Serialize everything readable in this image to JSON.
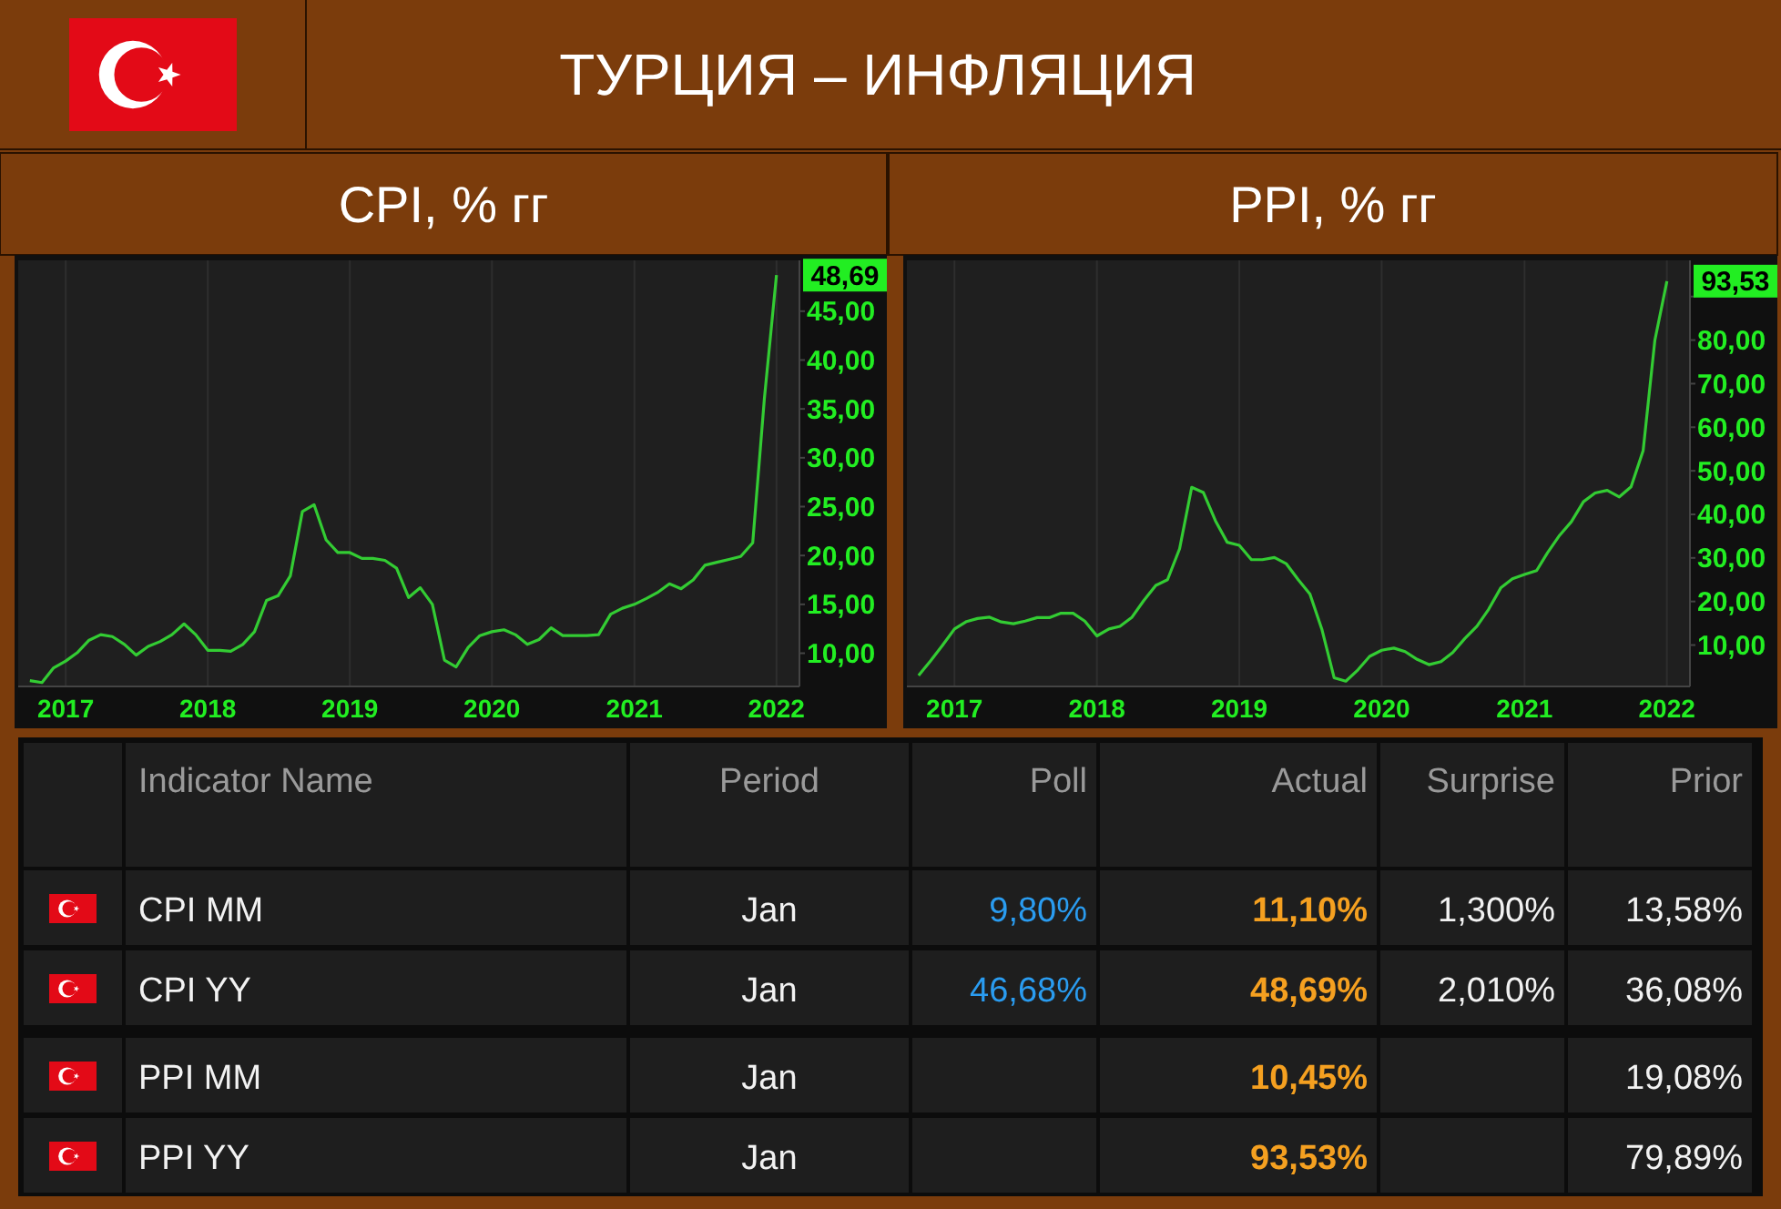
{
  "chart_data": [
    {
      "type": "other",
      "title": "ТУРЦИЯ – ИНФЛЯЦИЯ"
    },
    {
      "type": "line",
      "title": "CPI, % гг",
      "xlim": [
        "2016-09",
        "2022-03"
      ],
      "ylim": [
        6.6,
        50.2
      ],
      "xticks": [
        {
          "value": "2017-01",
          "label": "2017"
        },
        {
          "value": "2018-01",
          "label": "2018"
        },
        {
          "value": "2019-01",
          "label": "2019"
        },
        {
          "value": "2020-01",
          "label": "2020"
        },
        {
          "value": "2021-01",
          "label": "2021"
        },
        {
          "value": "2022-01",
          "label": "2022"
        }
      ],
      "yticks": [
        {
          "value": 10,
          "label": "10,00"
        },
        {
          "value": 15,
          "label": "15,00"
        },
        {
          "value": 20,
          "label": "20,00"
        },
        {
          "value": 25,
          "label": "25,00"
        },
        {
          "value": 30,
          "label": "30,00"
        },
        {
          "value": 35,
          "label": "35,00"
        },
        {
          "value": 40,
          "label": "40,00"
        },
        {
          "value": 45,
          "label": "45,00"
        }
      ],
      "grid": "x",
      "x": [
        "2016-10",
        "2016-11",
        "2016-12",
        "2017-01",
        "2017-02",
        "2017-03",
        "2017-04",
        "2017-05",
        "2017-06",
        "2017-07",
        "2017-08",
        "2017-09",
        "2017-10",
        "2017-11",
        "2017-12",
        "2018-01",
        "2018-02",
        "2018-03",
        "2018-04",
        "2018-05",
        "2018-06",
        "2018-07",
        "2018-08",
        "2018-09",
        "2018-10",
        "2018-11",
        "2018-12",
        "2019-01",
        "2019-02",
        "2019-03",
        "2019-04",
        "2019-05",
        "2019-06",
        "2019-07",
        "2019-08",
        "2019-09",
        "2019-10",
        "2019-11",
        "2019-12",
        "2020-01",
        "2020-02",
        "2020-03",
        "2020-04",
        "2020-05",
        "2020-06",
        "2020-07",
        "2020-08",
        "2020-09",
        "2020-10",
        "2020-11",
        "2020-12",
        "2021-01",
        "2021-02",
        "2021-03",
        "2021-04",
        "2021-05",
        "2021-06",
        "2021-07",
        "2021-08",
        "2021-09",
        "2021-10",
        "2021-11",
        "2021-12",
        "2022-01"
      ],
      "series": [
        {
          "color": "#33cc33",
          "values": [
            7.2,
            7.0,
            8.5,
            9.2,
            10.1,
            11.3,
            11.9,
            11.7,
            10.9,
            9.8,
            10.7,
            11.2,
            11.9,
            13.0,
            11.9,
            10.3,
            10.3,
            10.2,
            10.9,
            12.2,
            15.4,
            15.9,
            17.9,
            24.5,
            25.2,
            21.6,
            20.3,
            20.3,
            19.7,
            19.7,
            19.5,
            18.7,
            15.7,
            16.7,
            15.0,
            9.3,
            8.6,
            10.6,
            11.8,
            12.2,
            12.4,
            11.9,
            10.9,
            11.4,
            12.6,
            11.8,
            11.8,
            11.8,
            11.9,
            14.0,
            14.6,
            15.0,
            15.6,
            16.2,
            17.1,
            16.6,
            17.5,
            19.0,
            19.3,
            19.6,
            19.9,
            21.3,
            36.1,
            48.69
          ],
          "value_labels": [
            null,
            null,
            null,
            null,
            null,
            null,
            null,
            null,
            null,
            null,
            null,
            null,
            null,
            null,
            null,
            null,
            null,
            null,
            null,
            null,
            null,
            null,
            null,
            null,
            null,
            null,
            null,
            null,
            null,
            null,
            null,
            null,
            null,
            null,
            null,
            null,
            null,
            null,
            null,
            null,
            null,
            null,
            null,
            null,
            null,
            null,
            null,
            null,
            null,
            null,
            null,
            null,
            null,
            null,
            null,
            null,
            null,
            null,
            null,
            null,
            null,
            null,
            null,
            "48,69"
          ]
        }
      ]
    },
    {
      "type": "line",
      "title": "PPI, % гг",
      "xlim": [
        "2016-09",
        "2022-03"
      ],
      "ylim": [
        0.5,
        98.3
      ],
      "xticks": [
        {
          "value": "2017-01",
          "label": "2017"
        },
        {
          "value": "2018-01",
          "label": "2018"
        },
        {
          "value": "2019-01",
          "label": "2019"
        },
        {
          "value": "2020-01",
          "label": "2020"
        },
        {
          "value": "2021-01",
          "label": "2021"
        },
        {
          "value": "2022-01",
          "label": "2022"
        }
      ],
      "yticks": [
        {
          "value": 10,
          "label": "10,00"
        },
        {
          "value": 20,
          "label": "20,00"
        },
        {
          "value": 30,
          "label": "30,00"
        },
        {
          "value": 40,
          "label": "40,00"
        },
        {
          "value": 50,
          "label": "50,00"
        },
        {
          "value": 60,
          "label": "60,00"
        },
        {
          "value": 70,
          "label": "70,00"
        },
        {
          "value": 80,
          "label": "80,00"
        },
        {
          "value": 90,
          "label": null
        }
      ],
      "grid": "x",
      "x": [
        "2016-10",
        "2016-11",
        "2016-12",
        "2017-01",
        "2017-02",
        "2017-03",
        "2017-04",
        "2017-05",
        "2017-06",
        "2017-07",
        "2017-08",
        "2017-09",
        "2017-10",
        "2017-11",
        "2017-12",
        "2018-01",
        "2018-02",
        "2018-03",
        "2018-04",
        "2018-05",
        "2018-06",
        "2018-07",
        "2018-08",
        "2018-09",
        "2018-10",
        "2018-11",
        "2018-12",
        "2019-01",
        "2019-02",
        "2019-03",
        "2019-04",
        "2019-05",
        "2019-06",
        "2019-07",
        "2019-08",
        "2019-09",
        "2019-10",
        "2019-11",
        "2019-12",
        "2020-01",
        "2020-02",
        "2020-03",
        "2020-04",
        "2020-05",
        "2020-06",
        "2020-07",
        "2020-08",
        "2020-09",
        "2020-10",
        "2020-11",
        "2020-12",
        "2021-01",
        "2021-02",
        "2021-03",
        "2021-04",
        "2021-05",
        "2021-06",
        "2021-07",
        "2021-08",
        "2021-09",
        "2021-10",
        "2021-11",
        "2021-12",
        "2022-01"
      ],
      "series": [
        {
          "color": "#33cc33",
          "values": [
            3,
            6.4,
            9.9,
            13.7,
            15.4,
            16.1,
            16.4,
            15.3,
            14.9,
            15.5,
            16.3,
            16.3,
            17.3,
            17.3,
            15.5,
            12.1,
            13.7,
            14.3,
            16.4,
            20.2,
            23.7,
            25.0,
            32.1,
            46.2,
            45.0,
            38.5,
            33.6,
            32.9,
            29.6,
            29.6,
            30.1,
            28.7,
            25.0,
            21.7,
            13.5,
            2.5,
            1.7,
            4.3,
            7.4,
            8.8,
            9.3,
            8.5,
            6.7,
            5.5,
            6.2,
            8.3,
            11.5,
            14.3,
            18.2,
            23.1,
            25.2,
            26.2,
            27.1,
            31.2,
            35.2,
            38.3,
            42.9,
            44.9,
            45.5,
            44.0,
            46.3,
            54.6,
            79.9,
            93.53
          ],
          "value_labels": [
            null,
            null,
            null,
            null,
            null,
            null,
            null,
            null,
            null,
            null,
            null,
            null,
            null,
            null,
            null,
            null,
            null,
            null,
            null,
            null,
            null,
            null,
            null,
            null,
            null,
            null,
            null,
            null,
            null,
            null,
            null,
            null,
            null,
            null,
            null,
            null,
            null,
            null,
            null,
            null,
            null,
            null,
            null,
            null,
            null,
            null,
            null,
            null,
            null,
            null,
            null,
            null,
            null,
            null,
            null,
            null,
            null,
            null,
            null,
            null,
            null,
            null,
            null,
            "93,53"
          ]
        }
      ]
    },
    {
      "type": "other",
      "categories": [
        null,
        "Indicator Name",
        "Period",
        "Poll",
        "Actual",
        "Surprise",
        "Prior"
      ],
      "cell_labels": [
        [
          null,
          "CPI MM",
          "Jan",
          "9,80%",
          "11,10%",
          "1,300%",
          "13,58%"
        ],
        [
          null,
          "CPI YY",
          "Jan",
          "46,68%",
          "48,69%",
          "2,010%",
          "36,08%"
        ],
        [
          null,
          "PPI MM",
          "Jan",
          null,
          "10,45%",
          null,
          "19,08%"
        ],
        [
          null,
          "PPI YY",
          "Jan",
          null,
          "93,53%",
          null,
          "79,89%"
        ]
      ]
    }
  ]
}
